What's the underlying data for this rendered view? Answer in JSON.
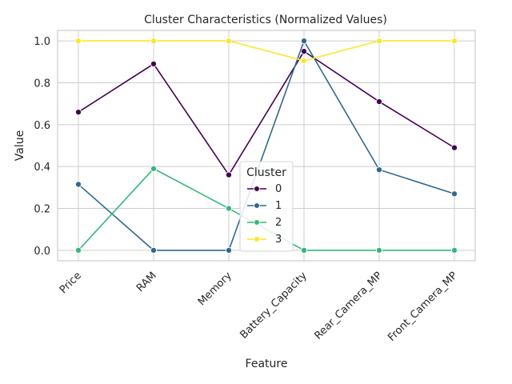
{
  "chart_data": {
    "type": "line",
    "title": "Cluster Characteristics (Normalized Values)",
    "xlabel": "Feature",
    "ylabel": "Value",
    "categories": [
      "Price",
      "RAM",
      "Memory",
      "Battery_Capacity",
      "Rear_Camera_MP",
      "Front_Camera_MP"
    ],
    "ylim": [
      -0.05,
      1.05
    ],
    "yticks": [
      0.0,
      0.2,
      0.4,
      0.6,
      0.8,
      1.0
    ],
    "ytick_labels": [
      "0.0",
      "0.2",
      "0.4",
      "0.6",
      "0.8",
      "1.0"
    ],
    "grid": true,
    "legend": {
      "title": "Cluster",
      "placement": "bottom-center"
    },
    "series": [
      {
        "name": "0",
        "color": "#440154",
        "values": [
          0.66,
          0.89,
          0.36,
          0.95,
          0.71,
          0.49
        ]
      },
      {
        "name": "1",
        "color": "#31688e",
        "values": [
          0.315,
          0.0,
          0.0,
          1.0,
          0.385,
          0.27
        ]
      },
      {
        "name": "2",
        "color": "#35b779",
        "values": [
          0.0,
          0.39,
          0.2,
          0.0,
          0.0,
          0.0
        ]
      },
      {
        "name": "3",
        "color": "#fde725",
        "values": [
          1.0,
          1.0,
          1.0,
          0.905,
          1.0,
          1.0
        ]
      }
    ]
  }
}
